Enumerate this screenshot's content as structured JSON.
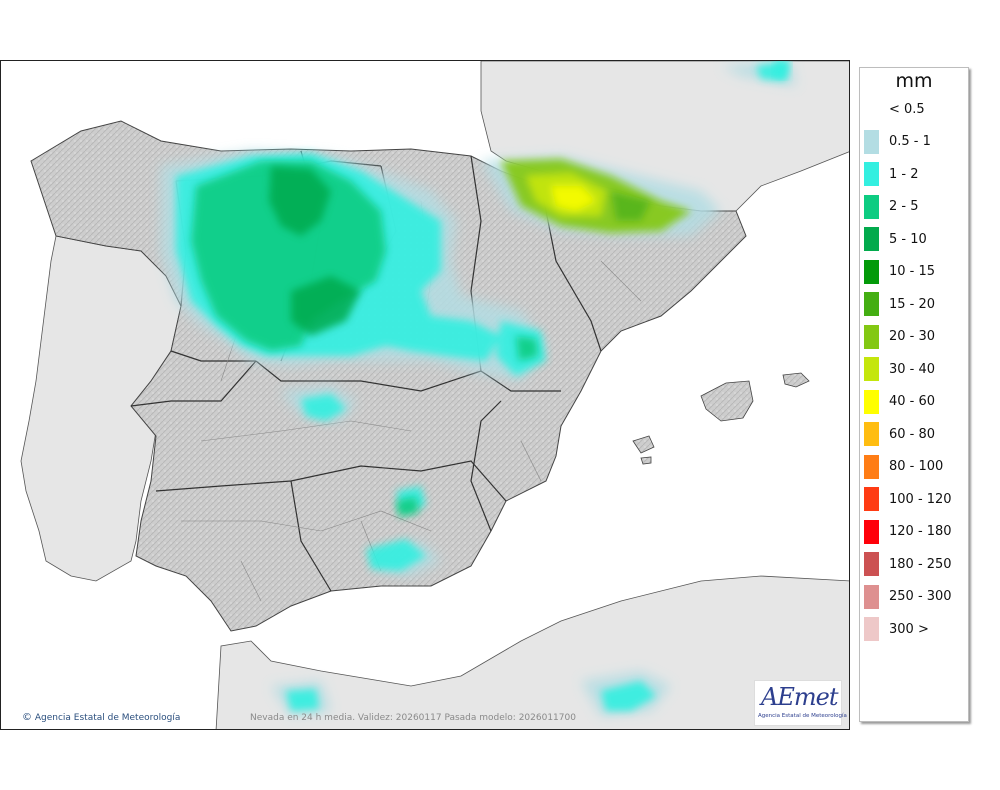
{
  "legend": {
    "unit": "mm",
    "classes": [
      {
        "label": "< 0.5",
        "color": "#ffffff"
      },
      {
        "label": "0.5 - 1",
        "color": "#b3dde3"
      },
      {
        "label": "1 - 2",
        "color": "#33efe0"
      },
      {
        "label": "2 - 5",
        "color": "#0dcc82"
      },
      {
        "label": "5 - 10",
        "color": "#02aa4d"
      },
      {
        "label": "10 - 15",
        "color": "#039a09"
      },
      {
        "label": "15 - 20",
        "color": "#44ae12"
      },
      {
        "label": "20 - 30",
        "color": "#83c813"
      },
      {
        "label": "30 - 40",
        "color": "#c4e60c"
      },
      {
        "label": "40 - 60",
        "color": "#ffff00"
      },
      {
        "label": "60 - 80",
        "color": "#ffbd11"
      },
      {
        "label": "80 - 100",
        "color": "#ff7d15"
      },
      {
        "label": "100 - 120",
        "color": "#ff3b13"
      },
      {
        "label": "120 - 180",
        "color": "#ff0009"
      },
      {
        "label": "180 - 250",
        "color": "#cc5152"
      },
      {
        "label": "250 - 300",
        "color": "#de9090"
      },
      {
        "label": "300 >",
        "color": "#eec8c8"
      }
    ]
  },
  "credit": "Agencia Estatal de Meteorología",
  "validity": "Nevada en 24 h media. Validez: 20260117 Pasada modelo: 2026011700",
  "logo": {
    "word": "AEmet",
    "subtitle": "Agencia Estatal de Meteorología"
  },
  "map": {
    "sea_color": "#ffffff",
    "foreign_land_color": "#e6e6e6",
    "spain_land_color": "#c9c9c9"
  }
}
